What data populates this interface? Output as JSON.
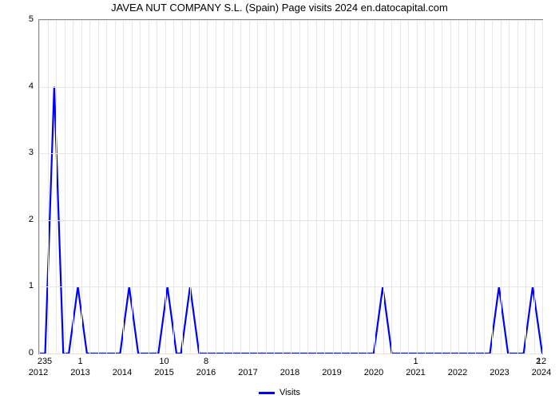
{
  "chart": {
    "type": "line",
    "title": "JAVEA NUT COMPANY S.L. (Spain) Page visits 2024 en.datocapital.com",
    "title_fontsize": 13,
    "title_color": "#000000",
    "background_color": "#ffffff",
    "border_color": "#888888",
    "grid_color": "#e6e6e6",
    "grid_major_h": true,
    "grid_minor_v": true,
    "line_color": "#0000ff",
    "line_width": 2.2,
    "x_categories": [
      "2012",
      "2013",
      "2014",
      "2015",
      "2016",
      "2017",
      "2018",
      "2019",
      "2020",
      "2021",
      "2022",
      "2023",
      "2024"
    ],
    "ylim": [
      0,
      5
    ],
    "ytick_step": 1,
    "yticks": [
      "0",
      "1",
      "2",
      "3",
      "4",
      "5"
    ],
    "value_labels": [
      "235",
      "1",
      "",
      "10",
      "8",
      "",
      "",
      "",
      "",
      "1",
      "",
      "",
      "12",
      "2"
    ],
    "value_label_row_offset": 0,
    "data_points": [
      {
        "t": 0.0,
        "v": 0
      },
      {
        "t": 0.012,
        "v": 0
      },
      {
        "t": 0.03,
        "v": 4
      },
      {
        "t": 0.048,
        "v": 0
      },
      {
        "t": 0.059,
        "v": 0
      },
      {
        "t": 0.077,
        "v": 1
      },
      {
        "t": 0.095,
        "v": 0
      },
      {
        "t": 0.161,
        "v": 0
      },
      {
        "t": 0.179,
        "v": 1
      },
      {
        "t": 0.197,
        "v": 0
      },
      {
        "t": 0.237,
        "v": 0
      },
      {
        "t": 0.255,
        "v": 1
      },
      {
        "t": 0.273,
        "v": 0
      },
      {
        "t": 0.282,
        "v": 0
      },
      {
        "t": 0.3,
        "v": 1
      },
      {
        "t": 0.318,
        "v": 0
      },
      {
        "t": 0.665,
        "v": 0
      },
      {
        "t": 0.683,
        "v": 1
      },
      {
        "t": 0.701,
        "v": 0
      },
      {
        "t": 0.896,
        "v": 0
      },
      {
        "t": 0.914,
        "v": 1
      },
      {
        "t": 0.932,
        "v": 0
      },
      {
        "t": 0.963,
        "v": 0
      },
      {
        "t": 0.981,
        "v": 1
      },
      {
        "t": 1.0,
        "v": 0
      }
    ],
    "legend_label": "Visits",
    "legend_color": "#0000ff",
    "label_fontsize": 11
  }
}
